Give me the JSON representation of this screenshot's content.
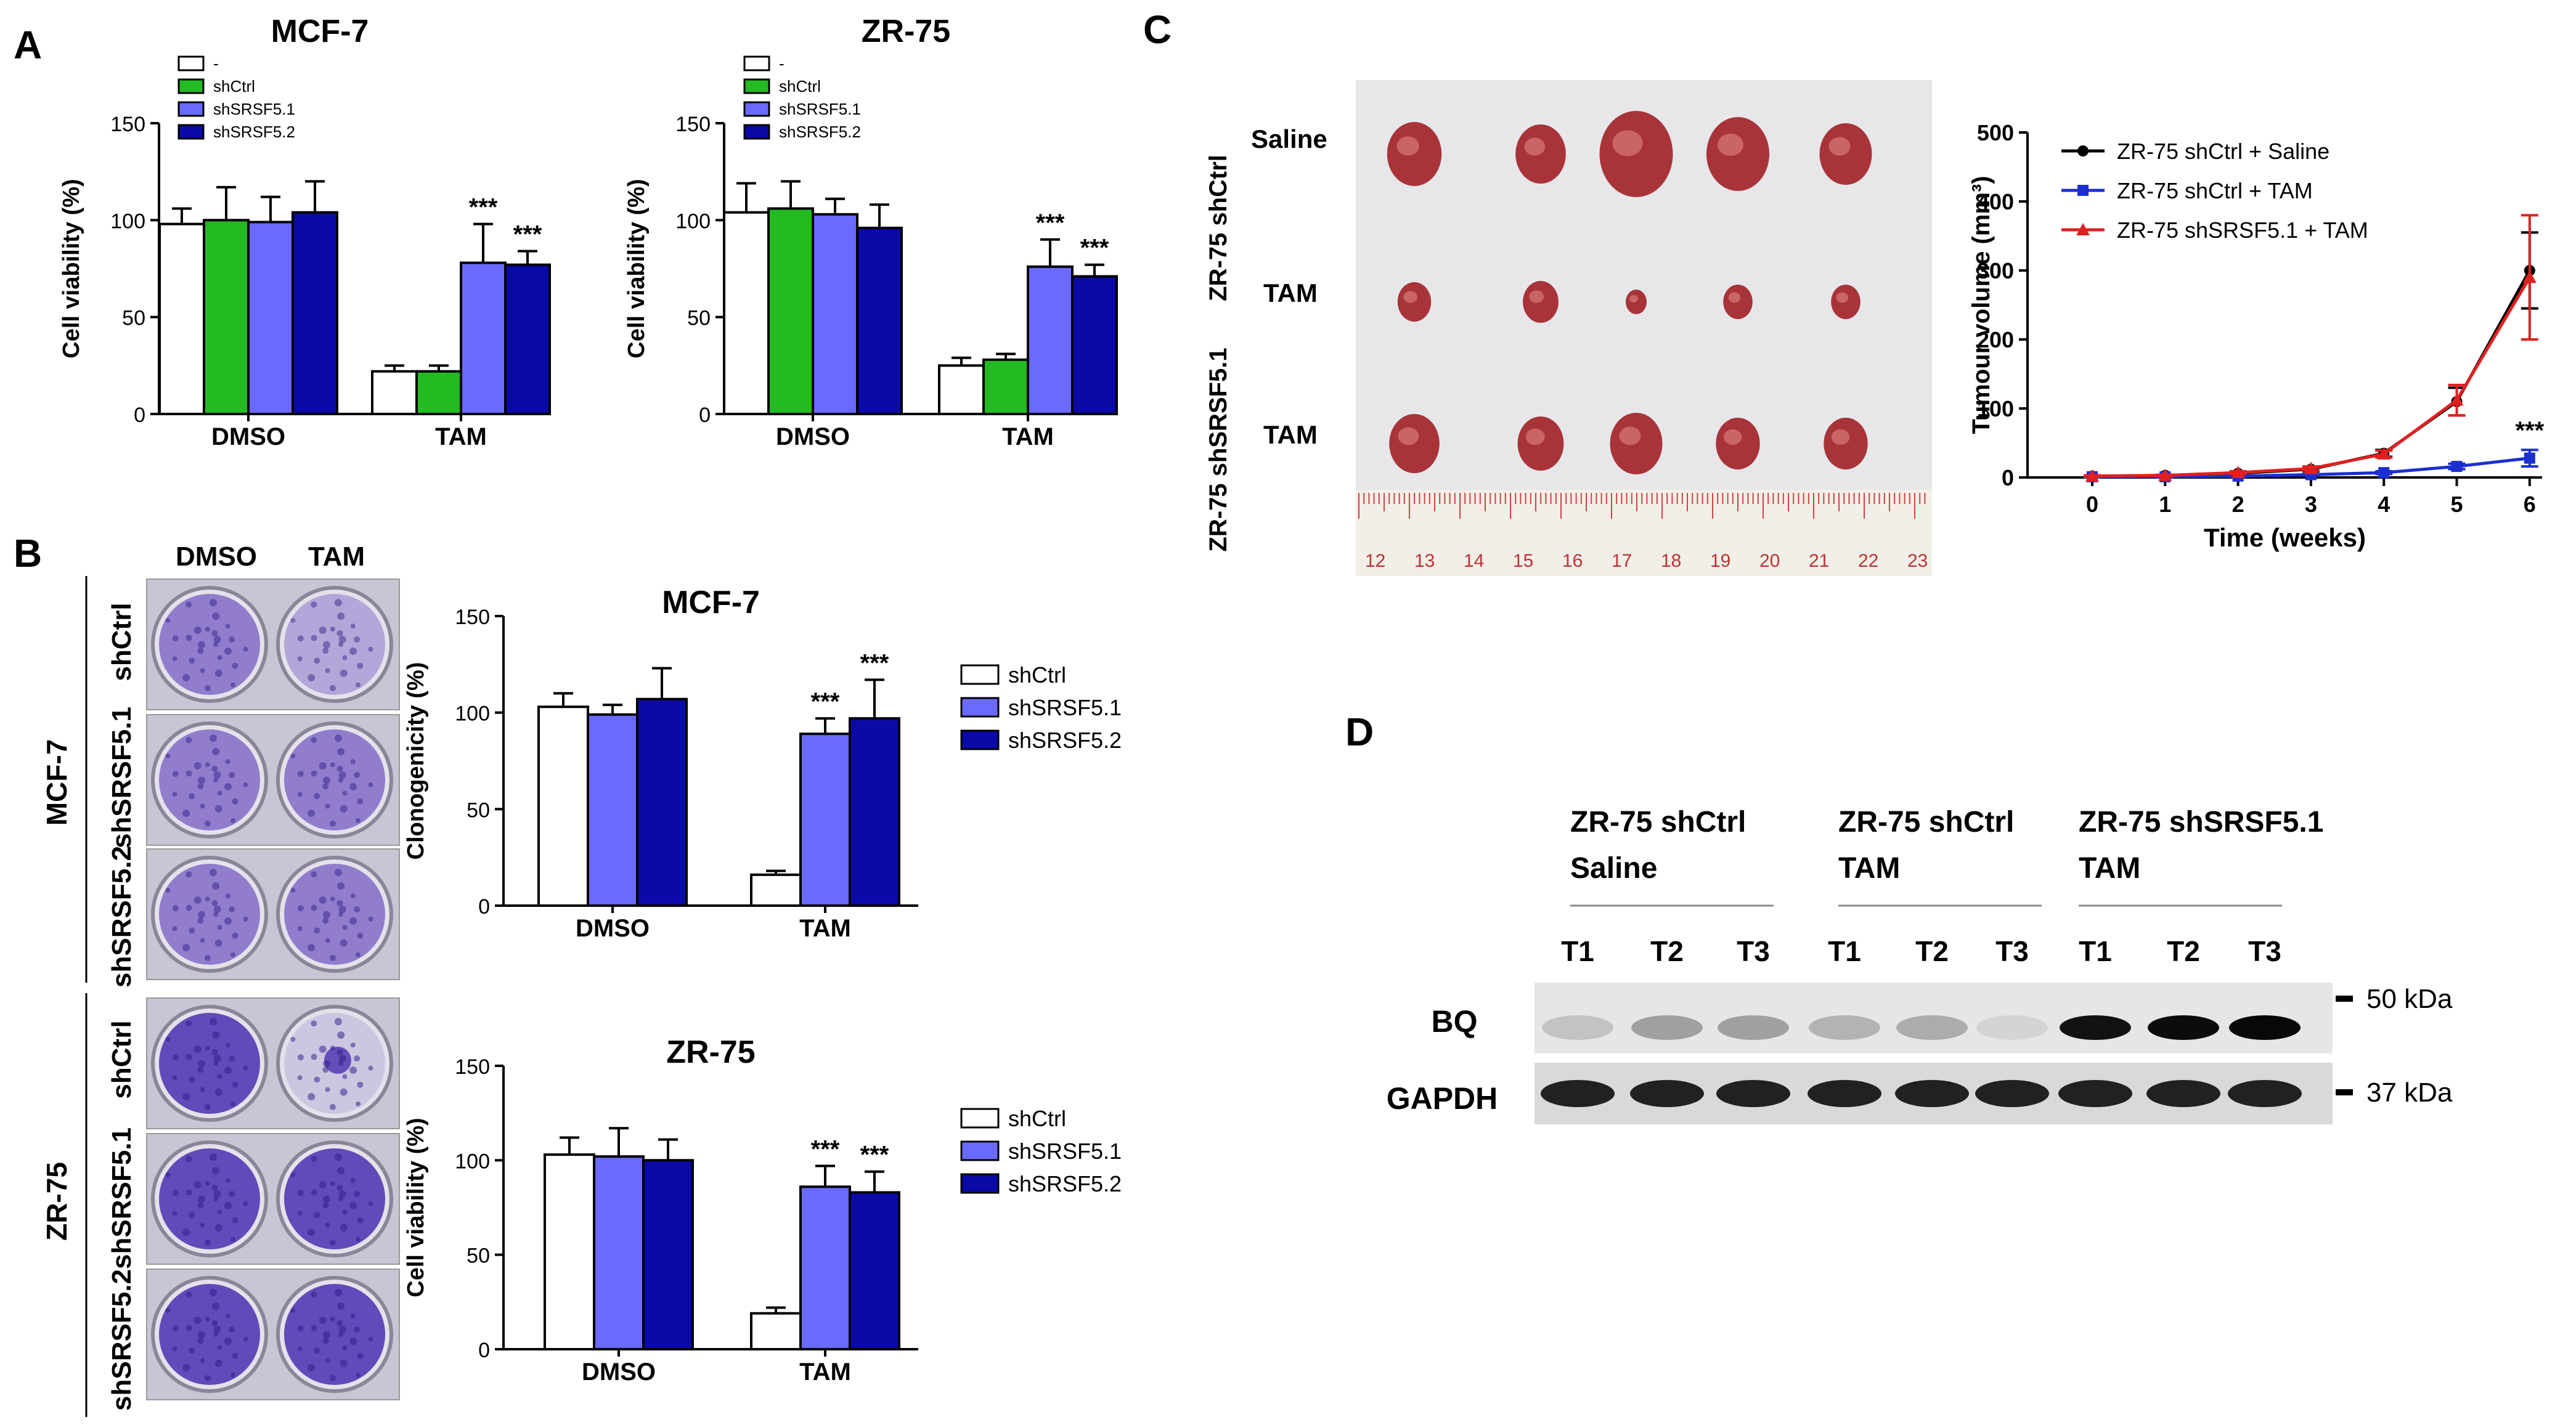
{
  "panels": {
    "A": "A",
    "B": "B",
    "C": "C",
    "D": "D"
  },
  "legend_A": [
    "-",
    "shCtrl",
    "shSRSF5.1",
    "shSRSF5.2"
  ],
  "legend_B": [
    "shCtrl",
    "shSRSF5.1",
    "shSRSF5.2"
  ],
  "series_colors": {
    "none": "#ffffff",
    "shCtrl_A": "#22bb22",
    "shSRSF5.1": "#6a6aff",
    "shSRSF5.2": "#0a0aa8"
  },
  "chart_data": [
    {
      "id": "A-MCF7",
      "type": "bar",
      "title": "MCF-7",
      "ylabel": "Cell viability (%)",
      "ylim": [
        0,
        150
      ],
      "yticks": [
        "0",
        "50",
        "100",
        "150"
      ],
      "categories": [
        "DMSO",
        "TAM"
      ],
      "series": [
        {
          "name": "-",
          "values": [
            98,
            22
          ],
          "errors": [
            8,
            3
          ]
        },
        {
          "name": "shCtrl",
          "values": [
            100,
            22
          ],
          "errors": [
            17,
            3
          ]
        },
        {
          "name": "shSRSF5.1",
          "values": [
            99,
            78
          ],
          "errors": [
            13,
            20
          ]
        },
        {
          "name": "shSRSF5.2",
          "values": [
            104,
            77
          ],
          "errors": [
            16,
            7
          ]
        }
      ],
      "annotations": [
        "***",
        "***"
      ]
    },
    {
      "id": "A-ZR75",
      "type": "bar",
      "title": "ZR-75",
      "ylabel": "Cell viability (%)",
      "ylim": [
        0,
        150
      ],
      "yticks": [
        "0",
        "50",
        "100",
        "150"
      ],
      "categories": [
        "DMSO",
        "TAM"
      ],
      "series": [
        {
          "name": "-",
          "values": [
            104,
            25
          ],
          "errors": [
            15,
            4
          ]
        },
        {
          "name": "shCtrl",
          "values": [
            106,
            28
          ],
          "errors": [
            14,
            3
          ]
        },
        {
          "name": "shSRSF5.1",
          "values": [
            103,
            76
          ],
          "errors": [
            8,
            14
          ]
        },
        {
          "name": "shSRSF5.2",
          "values": [
            96,
            71
          ],
          "errors": [
            12,
            6
          ]
        }
      ],
      "annotations": [
        "***",
        "***"
      ]
    },
    {
      "id": "B-MCF7",
      "type": "bar",
      "title": "MCF-7",
      "ylabel": "Clonogenicity (%)",
      "ylim": [
        0,
        150
      ],
      "yticks": [
        "0",
        "50",
        "100",
        "150"
      ],
      "categories": [
        "DMSO",
        "TAM"
      ],
      "series": [
        {
          "name": "shCtrl",
          "values": [
            103,
            16
          ],
          "errors": [
            7,
            2
          ]
        },
        {
          "name": "shSRSF5.1",
          "values": [
            99,
            89
          ],
          "errors": [
            5,
            8
          ]
        },
        {
          "name": "shSRSF5.2",
          "values": [
            107,
            97
          ],
          "errors": [
            16,
            20
          ]
        }
      ],
      "annotations": [
        "***",
        "***"
      ]
    },
    {
      "id": "B-ZR75",
      "type": "bar",
      "title": "ZR-75",
      "ylabel": "Cell viability (%)",
      "ylim": [
        0,
        150
      ],
      "yticks": [
        "0",
        "50",
        "100",
        "150"
      ],
      "categories": [
        "DMSO",
        "TAM"
      ],
      "series": [
        {
          "name": "shCtrl",
          "values": [
            103,
            19
          ],
          "errors": [
            9,
            3
          ]
        },
        {
          "name": "shSRSF5.1",
          "values": [
            102,
            86
          ],
          "errors": [
            15,
            11
          ]
        },
        {
          "name": "shSRSF5.2",
          "values": [
            100,
            83
          ],
          "errors": [
            11,
            11
          ]
        }
      ],
      "annotations": [
        "***",
        "***"
      ]
    },
    {
      "id": "C-growth",
      "type": "line",
      "xlabel": "Time (weeks)",
      "ylabel": "Tumour volume (mm³)",
      "xlim": [
        0,
        6
      ],
      "ylim": [
        0,
        500
      ],
      "xticks": [
        "0",
        "1",
        "2",
        "3",
        "4",
        "5",
        "6"
      ],
      "yticks": [
        "0",
        "100",
        "200",
        "300",
        "400",
        "500"
      ],
      "series": [
        {
          "name": "ZR-75 shCtrl + Saline",
          "color": "#000000",
          "marker": "circle",
          "x": [
            0,
            1,
            2,
            3,
            4,
            5,
            6
          ],
          "y": [
            2,
            3,
            6,
            12,
            35,
            110,
            300
          ],
          "errors": [
            1,
            1,
            2,
            3,
            5,
            20,
            55
          ]
        },
        {
          "name": "ZR-75 shCtrl + TAM",
          "color": "#1b2fd1",
          "marker": "square",
          "x": [
            0,
            1,
            2,
            3,
            4,
            5,
            6
          ],
          "y": [
            1,
            1,
            2,
            4,
            7,
            16,
            28
          ],
          "errors": [
            1,
            1,
            1,
            1,
            2,
            4,
            12
          ]
        },
        {
          "name": "ZR-75 shSRSF5.1 + TAM",
          "color": "#e02020",
          "marker": "triangle",
          "x": [
            0,
            1,
            2,
            3,
            4,
            5,
            6
          ],
          "y": [
            2,
            3,
            7,
            13,
            34,
            112,
            290
          ],
          "errors": [
            1,
            1,
            2,
            3,
            5,
            22,
            90
          ]
        }
      ],
      "annotations": [
        "***"
      ]
    }
  ],
  "panelB": {
    "col_headers": [
      "DMSO",
      "TAM"
    ],
    "row_labels": [
      "shCtrl",
      "shSRSF5.1",
      "shSRSF5.2",
      "shCtrl",
      "shSRSF5.1",
      "shSRSF5.2"
    ],
    "group_labels": [
      "MCF-7",
      "ZR-75"
    ]
  },
  "panelC": {
    "row_labels": [
      "Saline",
      "TAM",
      "TAM"
    ],
    "side_labels": [
      "ZR-75 shCtrl",
      "ZR-75 shSRSF5.1"
    ],
    "ruler_ticks": [
      "12",
      "13",
      "14",
      "15",
      "16",
      "17",
      "18",
      "19",
      "20",
      "21",
      "22",
      "23"
    ]
  },
  "panelD": {
    "groups": [
      {
        "line1": "ZR-75 shCtrl",
        "line2": "Saline"
      },
      {
        "line1": "ZR-75 shCtrl",
        "line2": "TAM"
      },
      {
        "line1": "ZR-75 shSRSF5.1",
        "line2": "TAM"
      }
    ],
    "lanes": [
      "T1",
      "T2",
      "T3",
      "T1",
      "T2",
      "T3",
      "T1",
      "T2",
      "T3"
    ],
    "rows": [
      "BQ",
      "GAPDH"
    ],
    "markers": [
      "50 kDa",
      "37 kDa"
    ],
    "bq_intensity": [
      0.15,
      0.3,
      0.3,
      0.22,
      0.25,
      0.08,
      0.92,
      0.95,
      0.97
    ],
    "gapdh_intensity": [
      0.85,
      0.85,
      0.85,
      0.85,
      0.85,
      0.85,
      0.85,
      0.85,
      0.85
    ]
  }
}
